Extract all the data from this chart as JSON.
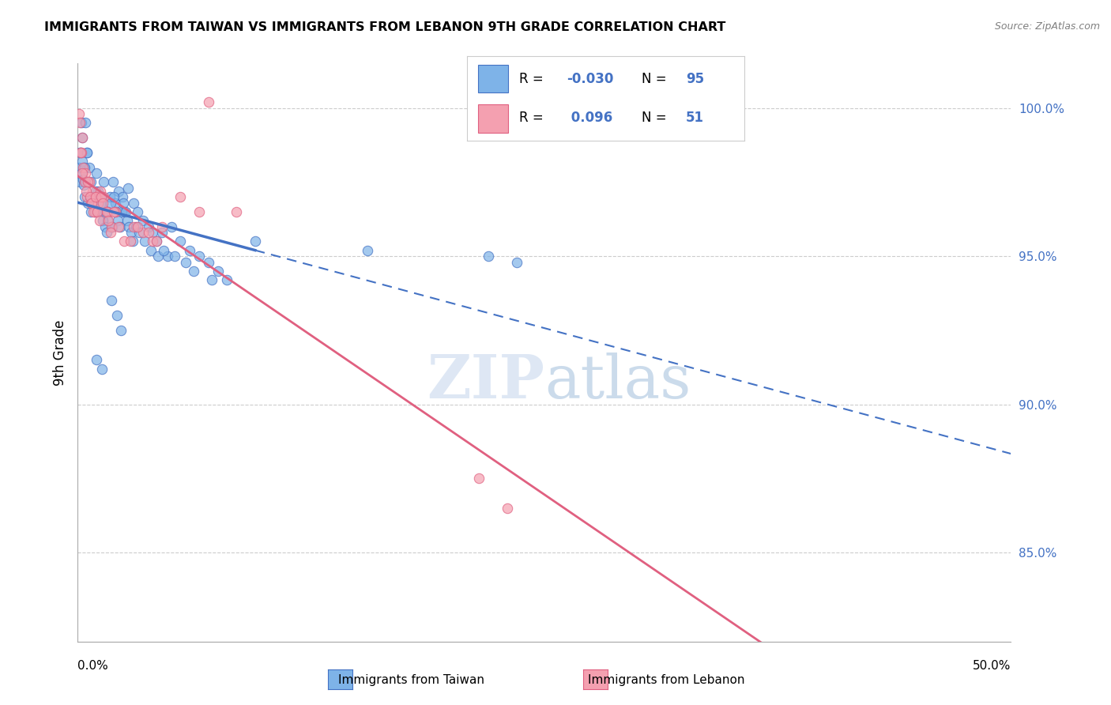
{
  "title": "IMMIGRANTS FROM TAIWAN VS IMMIGRANTS FROM LEBANON 9TH GRADE CORRELATION CHART",
  "source": "Source: ZipAtlas.com",
  "ylabel": "9th Grade",
  "ylabel_right_ticks": [
    85.0,
    90.0,
    95.0,
    100.0
  ],
  "xmin": 0.0,
  "xmax": 50.0,
  "ymin": 82.0,
  "ymax": 101.5,
  "taiwan_color": "#7EB3E8",
  "lebanon_color": "#F4A0B0",
  "taiwan_trend_color": "#4472C4",
  "lebanon_trend_color": "#E06080",
  "background_color": "#FFFFFF",
  "taiwan_x": [
    0.1,
    0.15,
    0.2,
    0.25,
    0.3,
    0.35,
    0.4,
    0.5,
    0.6,
    0.7,
    0.8,
    0.9,
    1.0,
    1.1,
    1.2,
    1.3,
    1.4,
    1.5,
    1.6,
    1.7,
    1.8,
    1.9,
    2.0,
    2.2,
    2.4,
    2.5,
    2.7,
    3.0,
    3.2,
    3.5,
    3.8,
    4.0,
    4.2,
    4.5,
    4.8,
    5.0,
    5.5,
    6.0,
    6.5,
    7.0,
    7.5,
    8.0,
    0.05,
    0.12,
    0.18,
    0.22,
    0.28,
    0.32,
    0.38,
    0.42,
    0.48,
    0.55,
    0.65,
    0.72,
    0.85,
    0.95,
    1.05,
    1.15,
    1.25,
    1.35,
    1.45,
    1.55,
    1.65,
    1.75,
    1.85,
    1.95,
    2.05,
    2.15,
    2.25,
    2.35,
    2.45,
    2.55,
    2.65,
    2.75,
    2.85,
    2.95,
    3.1,
    3.3,
    3.6,
    3.9,
    4.3,
    4.6,
    5.2,
    5.8,
    6.2,
    7.2,
    1.8,
    2.1,
    2.3,
    1.0,
    1.3,
    9.5,
    15.5,
    22.0,
    23.5
  ],
  "taiwan_y": [
    97.5,
    98.5,
    99.5,
    99.0,
    98.0,
    97.0,
    99.5,
    98.5,
    98.0,
    97.5,
    97.0,
    96.5,
    97.8,
    97.2,
    96.8,
    97.0,
    97.5,
    96.5,
    96.2,
    97.0,
    96.0,
    97.5,
    96.8,
    97.2,
    97.0,
    96.5,
    97.3,
    96.8,
    96.5,
    96.2,
    96.0,
    95.8,
    95.5,
    95.8,
    95.0,
    96.0,
    95.5,
    95.2,
    95.0,
    94.8,
    94.5,
    94.2,
    98.0,
    98.5,
    97.8,
    98.2,
    97.6,
    97.4,
    98.0,
    97.5,
    98.5,
    96.8,
    97.0,
    96.5,
    96.8,
    97.2,
    96.5,
    97.0,
    96.8,
    96.2,
    96.0,
    95.8,
    96.5,
    96.8,
    96.0,
    97.0,
    96.5,
    96.2,
    96.0,
    96.5,
    96.8,
    96.5,
    96.2,
    96.0,
    95.8,
    95.5,
    96.0,
    95.8,
    95.5,
    95.2,
    95.0,
    95.2,
    95.0,
    94.8,
    94.5,
    94.2,
    93.5,
    93.0,
    92.5,
    91.5,
    91.2,
    95.5,
    95.2,
    95.0,
    94.8
  ],
  "lebanon_x": [
    0.08,
    0.12,
    0.18,
    0.22,
    0.28,
    0.35,
    0.42,
    0.5,
    0.6,
    0.7,
    0.8,
    0.9,
    1.0,
    1.1,
    1.2,
    1.4,
    1.6,
    1.8,
    2.0,
    2.5,
    3.0,
    3.5,
    4.0,
    4.5,
    5.5,
    6.5,
    7.0,
    0.15,
    0.25,
    0.45,
    0.55,
    0.65,
    0.75,
    0.85,
    0.95,
    1.05,
    1.15,
    1.25,
    1.35,
    1.55,
    1.65,
    1.75,
    1.95,
    2.2,
    2.8,
    3.2,
    3.8,
    4.2,
    8.5,
    21.5,
    23.0
  ],
  "lebanon_y": [
    99.8,
    99.5,
    98.5,
    99.0,
    98.0,
    97.5,
    97.8,
    97.0,
    97.5,
    96.8,
    97.2,
    96.5,
    97.0,
    96.8,
    97.2,
    97.0,
    96.5,
    96.0,
    96.5,
    95.5,
    96.0,
    95.8,
    95.5,
    96.0,
    97.0,
    96.5,
    100.2,
    98.5,
    97.8,
    97.2,
    97.5,
    97.0,
    96.8,
    96.5,
    97.0,
    96.5,
    96.2,
    97.0,
    96.8,
    96.5,
    96.2,
    95.8,
    96.5,
    96.0,
    95.5,
    96.0,
    95.8,
    95.5,
    96.5,
    87.5,
    86.5
  ]
}
